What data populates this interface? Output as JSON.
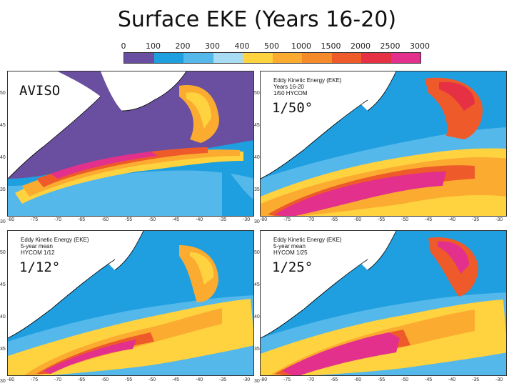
{
  "title": "Surface EKE (Years 16-20)",
  "colorbar": {
    "labels": [
      "0",
      "100",
      "200",
      "300",
      "400",
      "500",
      "1000",
      "1500",
      "2000",
      "2500",
      "3000"
    ],
    "colors": [
      "#6a4fa0",
      "#6a4fa0",
      "#1e9fe0",
      "#55b8ea",
      "#a8dcf3",
      "#ffd23f",
      "#fbac30",
      "#f58a2b",
      "#ee5a2a",
      "#e63145",
      "#e2308c"
    ]
  },
  "panels": [
    {
      "id": "aviso",
      "label": "AVISO",
      "caption": []
    },
    {
      "id": "hycom50",
      "label": "1/50°",
      "caption": [
        "Eddy Kinetic Energy (EKE)",
        "Years 16-20",
        "1/50 HYCOM"
      ]
    },
    {
      "id": "hycom12",
      "label": "1/12°",
      "caption": [
        "Eddy Kinetic Energy (EKE)",
        "5-year mean",
        "HYCOM 1/12"
      ]
    },
    {
      "id": "hycom25",
      "label": "1/25°",
      "caption": [
        "Eddy Kinetic Energy (EKE)",
        "5-year mean",
        "HYCOM 1/25"
      ]
    }
  ],
  "map_axes": {
    "lon_ticks": [
      "-80",
      "-75",
      "-70",
      "-65",
      "-60",
      "-55",
      "-50",
      "-45",
      "-40",
      "-35",
      "-30"
    ],
    "lat_ticks": [
      "50",
      "45",
      "40",
      "35",
      "30"
    ]
  },
  "colors": {
    "land": "#ffffff",
    "coast": "#000000",
    "background_ocean": "#1f9fe0"
  }
}
